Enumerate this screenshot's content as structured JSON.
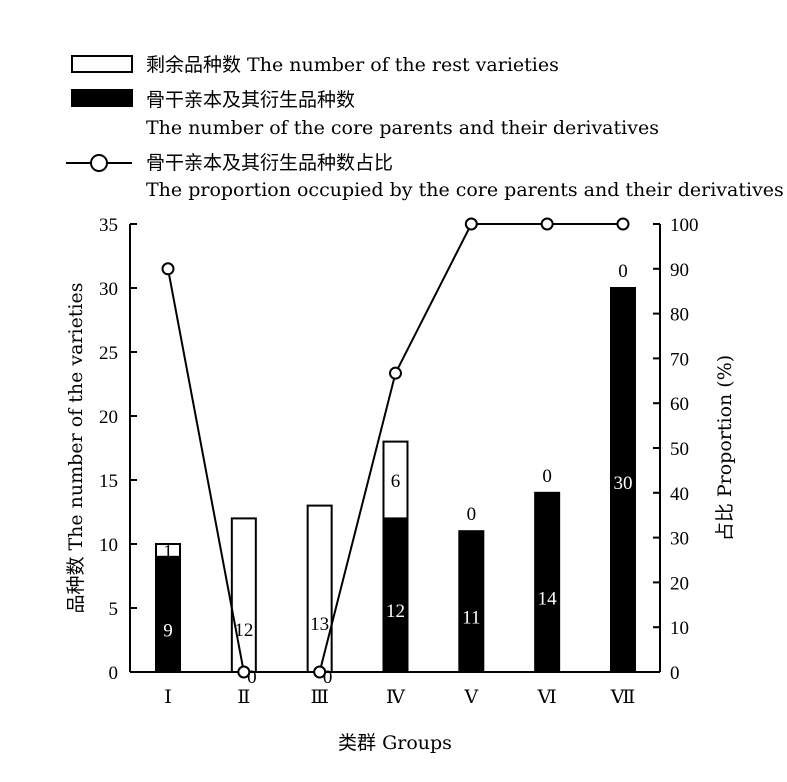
{
  "legend": {
    "rest_label": "剩余品种数 The number of the rest varieties",
    "core_label_zh": "骨干亲本及其衍生品种数",
    "core_label_en": "The number of the core parents and their derivatives",
    "prop_label_zh": "骨干亲本及其衍生品种数占比",
    "prop_label_en": "The proportion occupied by the core parents and their derivatives"
  },
  "colors": {
    "core": "#000000",
    "rest": "#ffffff",
    "line": "#000000"
  },
  "chart_data": {
    "type": "bar",
    "stacked": true,
    "categories": [
      "Ⅰ",
      "Ⅱ",
      "Ⅲ",
      "Ⅳ",
      "Ⅴ",
      "Ⅵ",
      "Ⅶ"
    ],
    "series": [
      {
        "name": "骨干亲本及其衍生品种数 The number of the core parents and their derivatives",
        "values": [
          9,
          0,
          0,
          12,
          11,
          14,
          30
        ]
      },
      {
        "name": "剩余品种数 The number of the rest varieties",
        "values": [
          1,
          12,
          13,
          6,
          0,
          0,
          0
        ]
      }
    ],
    "line_series": {
      "name": "骨干亲本及其衍生品种数占比 The proportion occupied by the core parents and their derivatives",
      "axis": "right",
      "values": [
        90,
        0,
        0,
        66.7,
        100,
        100,
        100
      ]
    },
    "xlabel": "类群 Groups",
    "ylabel": "品种数 The number of the varieties",
    "ylabel_right": "占比 Proportion (%)",
    "ylim": [
      0,
      35
    ],
    "ylim_right": [
      0,
      100
    ],
    "yticks": [
      0,
      5,
      10,
      15,
      20,
      25,
      30,
      35
    ],
    "yticks_right": [
      0,
      10,
      20,
      30,
      40,
      50,
      60,
      70,
      80,
      90,
      100
    ],
    "grid": false,
    "legend_position": "top"
  }
}
